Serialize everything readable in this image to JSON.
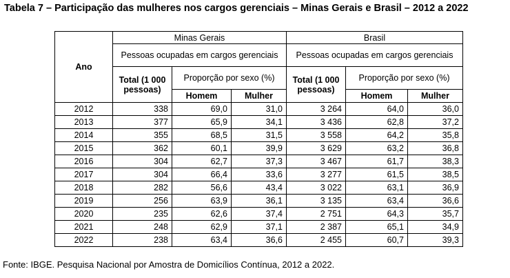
{
  "title": "Tabela 7 – Participação das mulheres nos cargos gerenciais – Minas Gerais e Brasil – 2012 a 2022",
  "table": {
    "ano_header": "Ano",
    "regions": [
      "Minas Gerais",
      "Brasil"
    ],
    "pessoas_header": "Pessoas ocupadas em cargos gerenciais",
    "total_header": "Total (1 000 pessoas)",
    "proporcao_header": "Proporção por sexo (%)",
    "homem_header": "Homem",
    "mulher_header": "Mulher",
    "rows": [
      [
        "2012",
        "338",
        "69,0",
        "31,0",
        "3 264",
        "64,0",
        "36,0"
      ],
      [
        "2013",
        "377",
        "65,9",
        "34,1",
        "3 436",
        "62,8",
        "37,2"
      ],
      [
        "2014",
        "355",
        "68,5",
        "31,5",
        "3 558",
        "64,2",
        "35,8"
      ],
      [
        "2015",
        "362",
        "60,1",
        "39,9",
        "3 629",
        "63,2",
        "36,8"
      ],
      [
        "2016",
        "304",
        "62,7",
        "37,3",
        "3 467",
        "61,7",
        "38,3"
      ],
      [
        "2017",
        "304",
        "66,4",
        "33,6",
        "3 277",
        "61,5",
        "38,5"
      ],
      [
        "2018",
        "282",
        "56,6",
        "43,4",
        "3 022",
        "63,1",
        "36,9"
      ],
      [
        "2019",
        "256",
        "63,9",
        "36,1",
        "3 135",
        "63,4",
        "36,6"
      ],
      [
        "2020",
        "235",
        "62,6",
        "37,4",
        "2 751",
        "64,3",
        "35,7"
      ],
      [
        "2021",
        "248",
        "62,9",
        "37,1",
        "2 387",
        "65,1",
        "34,9"
      ],
      [
        "2022",
        "238",
        "63,4",
        "36,6",
        "2 455",
        "60,7",
        "39,3"
      ]
    ]
  },
  "source": "Fonte: IBGE. Pesquisa Nacional por Amostra de Domicílios Contínua, 2012 a 2022."
}
